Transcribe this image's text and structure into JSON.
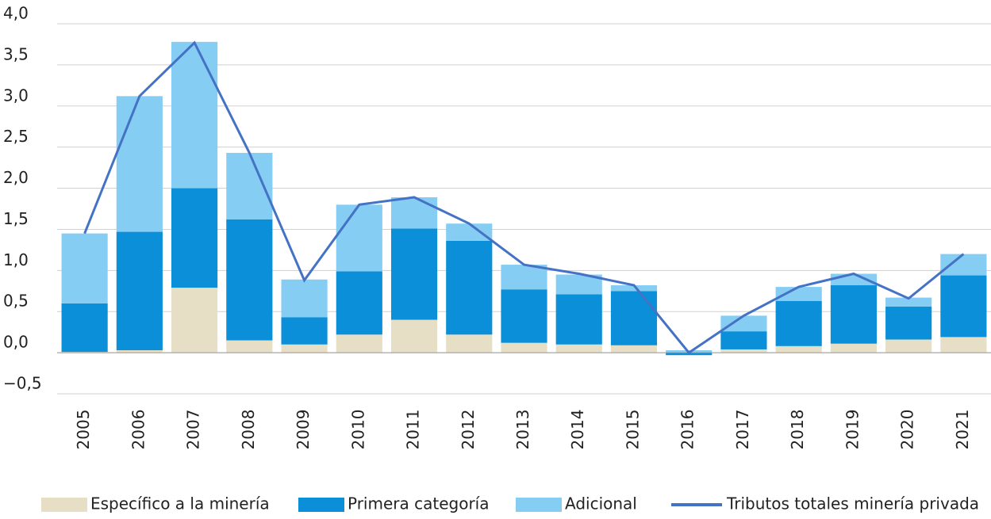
{
  "chart_data": {
    "type": "bar",
    "stacked": true,
    "categories": [
      "2005",
      "2006",
      "2007",
      "2008",
      "2009",
      "2010",
      "2011",
      "2012",
      "2013",
      "2014",
      "2015",
      "2016",
      "2017",
      "2018",
      "2019",
      "2020",
      "2021"
    ],
    "series": [
      {
        "name": "Específico a la minería",
        "color": "#e6dfc6",
        "values": [
          0.01,
          0.03,
          0.79,
          0.15,
          0.1,
          0.22,
          0.4,
          0.22,
          0.12,
          0.1,
          0.09,
          0.0,
          0.04,
          0.08,
          0.11,
          0.16,
          0.19
        ]
      },
      {
        "name": "Primera categoría",
        "color": "#0a8fd8",
        "values": [
          0.59,
          1.44,
          1.21,
          1.47,
          0.33,
          0.77,
          1.11,
          1.14,
          0.65,
          0.61,
          0.66,
          -0.03,
          0.22,
          0.55,
          0.71,
          0.4,
          0.75
        ]
      },
      {
        "name": "Adicional",
        "color": "#86cdf3",
        "values": [
          0.85,
          1.65,
          1.78,
          0.81,
          0.46,
          0.81,
          0.38,
          0.21,
          0.3,
          0.24,
          0.07,
          0.03,
          0.19,
          0.17,
          0.14,
          0.11,
          0.26
        ]
      },
      {
        "name": "Tributos totales minería privada",
        "type": "line",
        "color": "#4472c4",
        "values": [
          1.45,
          3.12,
          3.77,
          2.43,
          0.88,
          1.8,
          1.89,
          1.57,
          1.07,
          0.96,
          0.82,
          0.0,
          0.45,
          0.8,
          0.96,
          0.66,
          1.2
        ]
      }
    ],
    "ylim": [
      -0.5,
      4.0
    ],
    "yticks": [
      {
        "value": -0.5,
        "label": "−0,5"
      },
      {
        "value": 0,
        "label": "0,0"
      },
      {
        "value": 0.5,
        "label": "0,5"
      },
      {
        "value": 1,
        "label": "1,0"
      },
      {
        "value": 1.5,
        "label": "1,5"
      },
      {
        "value": 2,
        "label": "2,0"
      },
      {
        "value": 2.5,
        "label": "2,5"
      },
      {
        "value": 3,
        "label": "3,0"
      },
      {
        "value": 3.5,
        "label": "3,5"
      },
      {
        "value": 4,
        "label": "4,0"
      }
    ],
    "grid": true
  }
}
